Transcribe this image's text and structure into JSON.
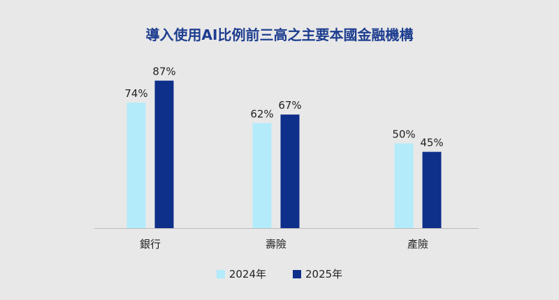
{
  "colors": {
    "background": "#e8e8e8",
    "title": "#1d3d8f",
    "series_2024": "#b3ebfb",
    "series_2025": "#0e2f8a",
    "axis": "#bbbbbb",
    "text": "#222222"
  },
  "chart_data": {
    "type": "bar",
    "title": "導入使用AI比例前三高之主要本國金融機構",
    "xlabel": "",
    "ylabel": "",
    "ylim": [
      0,
      100
    ],
    "categories": [
      "銀行",
      "壽險",
      "產險"
    ],
    "series": [
      {
        "name": "2024年",
        "values": [
          74,
          62,
          50
        ],
        "labels": [
          "74%",
          "62%",
          "50%"
        ],
        "color": "#b3ebfb"
      },
      {
        "name": "2025年",
        "values": [
          87,
          67,
          45
        ],
        "labels": [
          "87%",
          "67%",
          "45%"
        ],
        "color": "#0e2f8a"
      }
    ],
    "grid": false,
    "legend_position": "bottom"
  }
}
